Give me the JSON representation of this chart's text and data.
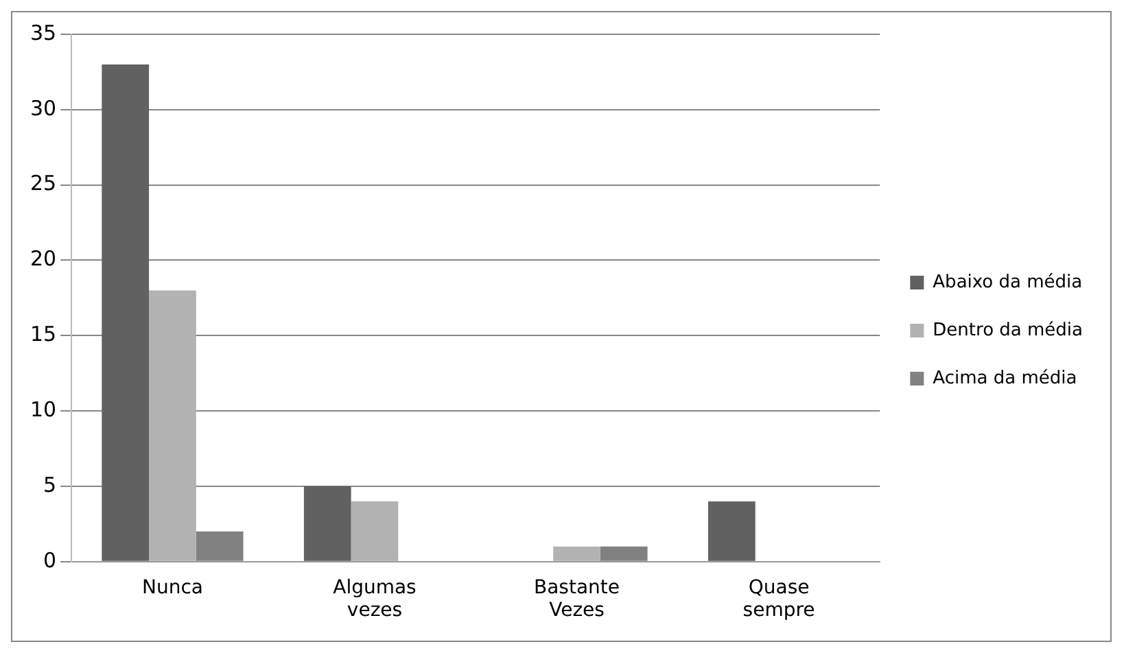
{
  "chart_data": {
    "type": "bar",
    "categories": [
      "Nunca",
      "Algumas vezes",
      "Bastante Vezes",
      "Quase sempre"
    ],
    "series": [
      {
        "name": "Abaixo da média",
        "color": "#616161",
        "values": [
          33,
          5,
          0,
          4
        ]
      },
      {
        "name": "Dentro da média",
        "color": "#b2b2b2",
        "values": [
          18,
          4,
          1,
          0
        ]
      },
      {
        "name": "Acima da média",
        "color": "#818181",
        "values": [
          2,
          0,
          1,
          0
        ]
      }
    ],
    "ylim": [
      0,
      35
    ],
    "yticks": [
      0,
      5,
      10,
      15,
      20,
      25,
      30,
      35
    ],
    "grid": "y",
    "legend": "right"
  }
}
